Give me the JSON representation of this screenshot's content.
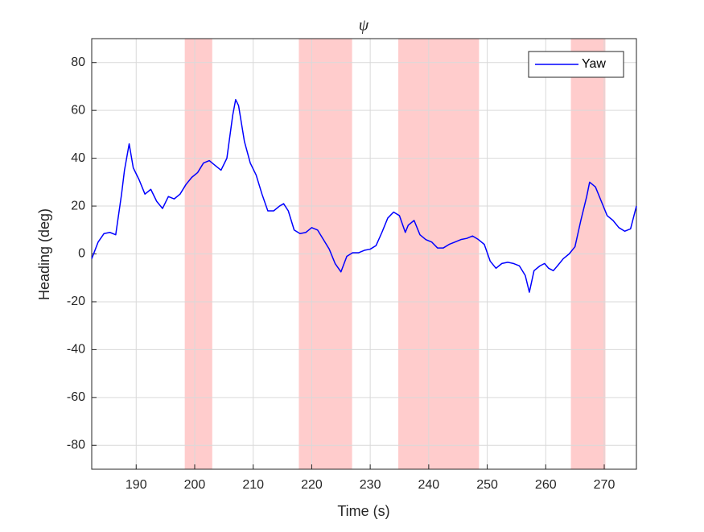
{
  "chart_data": {
    "type": "line",
    "title": "ψ",
    "xlabel": "Time (s)",
    "ylabel": "Heading (deg)",
    "x": [
      182.4,
      183.5,
      184.5,
      185.5,
      186.5,
      187.5,
      188,
      188.8,
      189.5,
      190.5,
      191.5,
      192.5,
      193.5,
      194.5,
      195.5,
      196.5,
      197.5,
      198.5,
      199.5,
      200.5,
      201.5,
      202.5,
      203.5,
      204.5,
      205.5,
      206.5,
      207,
      207.5,
      208.5,
      209.5,
      210.5,
      211.5,
      212.5,
      213.5,
      214.5,
      215.2,
      216,
      217,
      218,
      219,
      220,
      221,
      222,
      223,
      224,
      225,
      226,
      227,
      228,
      229,
      230,
      231,
      232,
      233,
      234,
      235,
      236,
      236.5,
      237.5,
      238.5,
      239.5,
      240.5,
      241.5,
      242.5,
      243.5,
      244.5,
      245.5,
      246.5,
      247.5,
      248.5,
      249.5,
      250.5,
      251.5,
      252.5,
      253.5,
      254.5,
      255.5,
      256.5,
      257.2,
      258,
      259,
      259.8,
      260.5,
      261.3,
      262,
      263,
      264,
      265,
      266,
      267,
      267.5,
      268.5,
      269.5,
      270.5,
      271.5,
      272.5,
      273.5,
      274.5,
      275.5
    ],
    "series": [
      {
        "name": "Yaw",
        "color": "#0000ff",
        "values": [
          -2,
          5,
          8.5,
          9,
          8,
          25,
          35,
          46,
          36,
          31,
          25,
          27,
          22,
          19,
          24,
          23,
          25,
          29,
          32,
          34,
          38,
          39,
          37,
          35,
          40,
          58,
          64.5,
          62,
          47,
          38,
          33,
          25,
          18,
          18,
          20,
          21,
          18,
          10,
          8.5,
          9,
          11,
          10,
          6,
          2,
          -4,
          -7.5,
          -1,
          0.5,
          0.5,
          1.5,
          2,
          3.5,
          9,
          15,
          17.5,
          16,
          9,
          12,
          14,
          8,
          6,
          5,
          2.5,
          2.5,
          4,
          5,
          6,
          6.5,
          7.5,
          6,
          4,
          -3,
          -6,
          -4,
          -3.5,
          -4,
          -5,
          -9,
          -16,
          -7,
          -5,
          -4,
          -6,
          -7,
          -5,
          -2,
          0,
          3,
          14,
          24,
          30,
          28,
          22,
          16,
          14,
          11,
          9.5,
          10.5,
          20
        ]
      }
    ],
    "shaded_regions": [
      [
        198.3,
        203.0
      ],
      [
        217.8,
        226.9
      ],
      [
        234.8,
        248.6
      ],
      [
        264.3,
        270.2
      ]
    ],
    "shade_color": "#ffcccc",
    "xlim": [
      182.4,
      275.5
    ],
    "ylim": [
      -90,
      90
    ],
    "xticks": [
      190,
      200,
      210,
      220,
      230,
      240,
      250,
      260,
      270
    ],
    "yticks": [
      -80,
      -60,
      -40,
      -20,
      0,
      20,
      40,
      60,
      80
    ],
    "grid": true,
    "legend": "upper right"
  }
}
